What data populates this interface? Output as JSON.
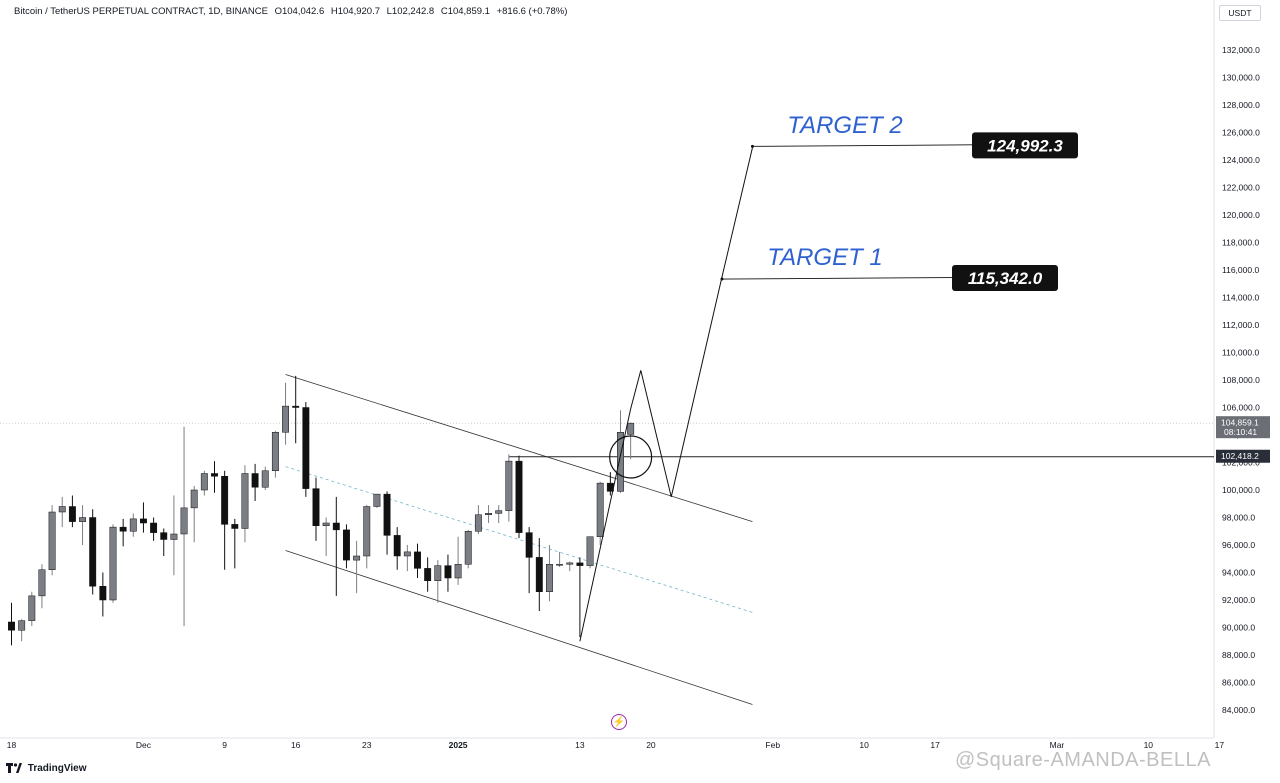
{
  "header": {
    "symbol": "Bitcoin / TetherUS PERPETUAL CONTRACT, 1D, BINANCE",
    "open": "O104,042.6",
    "high": "H104,920.7",
    "low": "L102,242.8",
    "close": "C104,859.1",
    "change": "+816.6 (+0.78%)"
  },
  "currency_badge": "USDT",
  "branding": {
    "logo_text": "TradingView",
    "logo_icon": "tradingview-logo-icon"
  },
  "watermark": "@Square-AMANDA-BELLA",
  "flash_icon": "lightning-icon",
  "colors": {
    "up_body": "#7b7e85",
    "down_body": "#111111",
    "target_text": "#2f62d0",
    "label_bg": "#111111",
    "label_text": "#ffffff",
    "grey_label_bg": "#6b6e75",
    "midline": "#6fb7c9"
  },
  "chart_data": {
    "type": "candlestick",
    "y_axis": {
      "range": [
        83000,
        135000
      ],
      "step": 2000,
      "tick_labels": [
        "84,000.0",
        "86,000.0",
        "88,000.0",
        "90,000.0",
        "92,000.0",
        "94,000.0",
        "96,000.0",
        "98,000.0",
        "100,000.0",
        "102,000.0",
        "104,000.0",
        "106,000.0",
        "108,000.0",
        "110,000.0",
        "112,000.0",
        "114,000.0",
        "116,000.0",
        "118,000.0",
        "120,000.0",
        "122,000.0",
        "124,000.0",
        "126,000.0",
        "128,000.0",
        "130,000.0",
        "132,000.0"
      ]
    },
    "x_axis": {
      "start_date": "2024-11-18",
      "tick_labels": [
        {
          "day": 0,
          "label": "18"
        },
        {
          "day": 13,
          "label": "Dec"
        },
        {
          "day": 21,
          "label": "9"
        },
        {
          "day": 28,
          "label": "16"
        },
        {
          "day": 35,
          "label": "23"
        },
        {
          "day": 44,
          "label": "2025"
        },
        {
          "day": 56,
          "label": "13"
        },
        {
          "day": 63,
          "label": "20"
        },
        {
          "day": 75,
          "label": "Feb"
        },
        {
          "day": 84,
          "label": "10"
        },
        {
          "day": 91,
          "label": "17"
        },
        {
          "day": 103,
          "label": "Mar"
        },
        {
          "day": 112,
          "label": "10"
        },
        {
          "day": 119,
          "label": "17"
        }
      ]
    },
    "candles": [
      [
        90400,
        91800,
        88700,
        89800
      ],
      [
        89800,
        90600,
        89000,
        90500
      ],
      [
        90500,
        92600,
        90100,
        92300
      ],
      [
        92300,
        94600,
        91400,
        94200
      ],
      [
        94200,
        98900,
        93800,
        98400
      ],
      [
        98400,
        99500,
        97300,
        98800
      ],
      [
        98800,
        99600,
        97300,
        97700
      ],
      [
        97700,
        98900,
        96000,
        98000
      ],
      [
        98000,
        98600,
        92400,
        93000
      ],
      [
        93000,
        94000,
        90800,
        92000
      ],
      [
        92000,
        97500,
        91800,
        97300
      ],
      [
        97300,
        97900,
        95900,
        97000
      ],
      [
        97000,
        98300,
        96600,
        97900
      ],
      [
        97900,
        99100,
        96900,
        97600
      ],
      [
        97600,
        98000,
        96300,
        96900
      ],
      [
        96900,
        97200,
        95200,
        96400
      ],
      [
        96400,
        99600,
        93800,
        96800
      ],
      [
        96800,
        104600,
        90100,
        98700
      ],
      [
        98700,
        100300,
        96200,
        100000
      ],
      [
        100000,
        101400,
        99600,
        101200
      ],
      [
        101200,
        102100,
        99800,
        101000
      ],
      [
        101000,
        101400,
        94200,
        97500
      ],
      [
        97500,
        97900,
        94300,
        97200
      ],
      [
        97200,
        101800,
        96200,
        101200
      ],
      [
        101200,
        101900,
        99200,
        100200
      ],
      [
        100200,
        101700,
        100000,
        101400
      ],
      [
        101400,
        104300,
        100900,
        104200
      ],
      [
        104200,
        107800,
        103300,
        106100
      ],
      [
        106100,
        108300,
        103400,
        106000
      ],
      [
        106000,
        106400,
        99500,
        100100
      ],
      [
        100100,
        100900,
        96300,
        97400
      ],
      [
        97400,
        98000,
        95200,
        97600
      ],
      [
        97600,
        99500,
        92300,
        97100
      ],
      [
        97100,
        97500,
        94300,
        94900
      ],
      [
        94900,
        96300,
        92500,
        95200
      ],
      [
        95200,
        98900,
        94300,
        98800
      ],
      [
        98800,
        99700,
        98700,
        99700
      ],
      [
        99700,
        99900,
        95300,
        96700
      ],
      [
        96700,
        97300,
        94200,
        95200
      ],
      [
        95200,
        96000,
        94100,
        95500
      ],
      [
        95500,
        96100,
        93600,
        94300
      ],
      [
        94300,
        95100,
        92600,
        93400
      ],
      [
        93400,
        94900,
        91800,
        94500
      ],
      [
        94500,
        95300,
        92600,
        93600
      ],
      [
        93600,
        96600,
        93100,
        94600
      ],
      [
        94600,
        97100,
        94300,
        97000
      ],
      [
        97000,
        98900,
        96800,
        98200
      ],
      [
        98200,
        98900,
        97600,
        98300
      ],
      [
        98300,
        98900,
        97600,
        98500
      ],
      [
        98500,
        102600,
        97700,
        102100
      ],
      [
        102100,
        102500,
        96500,
        96900
      ],
      [
        96900,
        97300,
        92500,
        95100
      ],
      [
        95100,
        96500,
        91200,
        92600
      ],
      [
        92600,
        96000,
        91900,
        94600
      ],
      [
        94600,
        95500,
        94400,
        94600
      ],
      [
        94600,
        94800,
        94100,
        94700
      ],
      [
        94700,
        95100,
        89300,
        94500
      ],
      [
        94500,
        96500,
        94300,
        96600
      ],
      [
        96600,
        100600,
        96000,
        100500
      ],
      [
        100500,
        101300,
        99600,
        99900
      ],
      [
        99900,
        105800,
        99800,
        104200
      ],
      [
        104042.6,
        104920.7,
        102242.8,
        104859.1
      ]
    ],
    "overlay": {
      "channel_upper": [
        [
          27,
          108400
        ],
        [
          73,
          97700
        ]
      ],
      "channel_lower": [
        [
          27,
          95600
        ],
        [
          73,
          84400
        ]
      ],
      "channel_mid": [
        [
          27,
          101700
        ],
        [
          73,
          91100
        ]
      ],
      "resistance_level": 102418.2,
      "resistance_start_day": 49,
      "projection_path": [
        [
          56,
          89000
        ],
        [
          61,
          105900
        ],
        [
          62,
          108700
        ],
        [
          65,
          99500
        ],
        [
          70,
          115500
        ],
        [
          73,
          124900
        ]
      ],
      "circle_center": [
        61,
        102400
      ],
      "target1": {
        "label": "TARGET 1",
        "price": 115342.0,
        "price_label": "115,342.0",
        "day": 70
      },
      "target2": {
        "label": "TARGET 2",
        "price": 124992.3,
        "price_label": "124,992.3",
        "day": 73
      }
    },
    "price_tags": [
      {
        "price": 104859.1,
        "label": "104,859.1",
        "sub": "08:10:41"
      },
      {
        "price": 102418.2,
        "label": "102,418.2",
        "sub": ""
      }
    ]
  }
}
